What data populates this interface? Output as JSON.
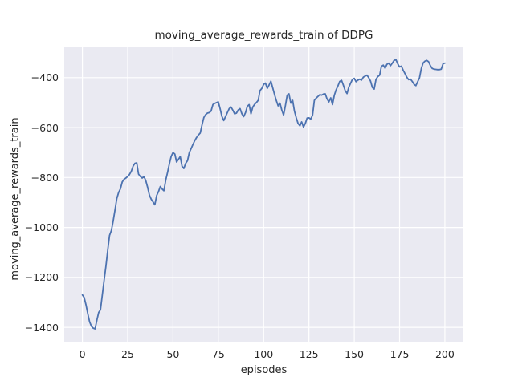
{
  "style": {
    "figure_bg": "#ffffff",
    "axes_bg": "#eaeaf2",
    "grid_color": "#ffffff",
    "line_color": "#4c72b0",
    "text_color": "#262626"
  },
  "chart_data": {
    "type": "line",
    "title": "moving_average_rewards_train of DDPG",
    "xlabel": "episodes",
    "ylabel": "moving_average_rewards_train",
    "legend_position": "none",
    "grid": true,
    "xlim": [
      -10,
      210
    ],
    "ylim": [
      -1459,
      -277
    ],
    "x_ticks": [
      0,
      25,
      50,
      75,
      100,
      125,
      150,
      175,
      200
    ],
    "x_ticklabels": [
      "0",
      "25",
      "50",
      "75",
      "100",
      "125",
      "150",
      "175",
      "200"
    ],
    "y_ticks": [
      -400,
      -600,
      -800,
      -1000,
      -1200,
      -1400
    ],
    "y_ticklabels": [
      "−400",
      "−600",
      "−800",
      "−1000",
      "−1200",
      "−1400"
    ],
    "series": [
      {
        "name": "moving_average_rewards_train",
        "color": "#4c72b0",
        "x_start": 0,
        "x_step": 1,
        "y": [
          -1270,
          -1280,
          -1310,
          -1345,
          -1378,
          -1396,
          -1403,
          -1406,
          -1372,
          -1340,
          -1330,
          -1270,
          -1210,
          -1155,
          -1090,
          -1032,
          -1012,
          -975,
          -930,
          -885,
          -860,
          -845,
          -818,
          -807,
          -802,
          -796,
          -788,
          -775,
          -754,
          -743,
          -741,
          -786,
          -796,
          -802,
          -796,
          -813,
          -839,
          -871,
          -887,
          -898,
          -909,
          -872,
          -856,
          -836,
          -846,
          -853,
          -810,
          -780,
          -745,
          -715,
          -700,
          -706,
          -738,
          -727,
          -716,
          -755,
          -764,
          -743,
          -732,
          -700,
          -684,
          -668,
          -652,
          -640,
          -630,
          -622,
          -590,
          -560,
          -548,
          -542,
          -540,
          -534,
          -508,
          -503,
          -500,
          -497,
          -525,
          -555,
          -572,
          -555,
          -540,
          -524,
          -518,
          -530,
          -545,
          -542,
          -529,
          -524,
          -545,
          -556,
          -540,
          -515,
          -508,
          -545,
          -518,
          -507,
          -500,
          -491,
          -452,
          -443,
          -427,
          -422,
          -443,
          -430,
          -414,
          -440,
          -467,
          -491,
          -513,
          -502,
          -529,
          -550,
          -513,
          -470,
          -465,
          -502,
          -491,
          -534,
          -561,
          -583,
          -593,
          -577,
          -598,
          -583,
          -562,
          -561,
          -566,
          -550,
          -491,
          -482,
          -475,
          -468,
          -470,
          -466,
          -465,
          -485,
          -497,
          -481,
          -508,
          -470,
          -449,
          -433,
          -415,
          -411,
          -430,
          -452,
          -464,
          -438,
          -422,
          -407,
          -403,
          -416,
          -410,
          -406,
          -410,
          -398,
          -394,
          -390,
          -400,
          -414,
          -440,
          -446,
          -406,
          -396,
          -390,
          -355,
          -350,
          -362,
          -347,
          -342,
          -352,
          -342,
          -331,
          -328,
          -345,
          -357,
          -354,
          -370,
          -384,
          -398,
          -408,
          -406,
          -415,
          -427,
          -432,
          -416,
          -401,
          -363,
          -341,
          -334,
          -331,
          -336,
          -352,
          -363,
          -366,
          -367,
          -368,
          -368,
          -366,
          -344,
          -342
        ]
      }
    ]
  }
}
